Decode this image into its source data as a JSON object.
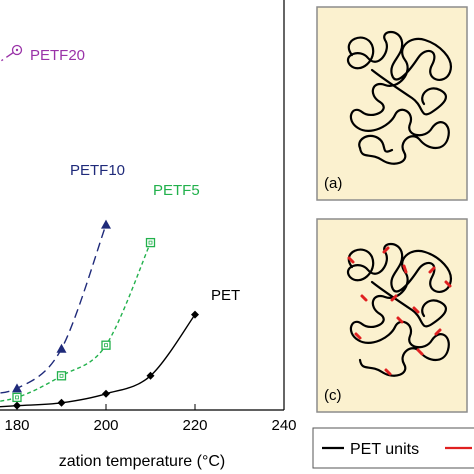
{
  "chart_data": {
    "type": "line",
    "xlabel": "zation temperature (°C)",
    "xlim": [
      160,
      240
    ],
    "x_ticks": [
      "180",
      "200",
      "220",
      "240"
    ],
    "ylim": [
      0,
      1
    ],
    "grid": false,
    "series": [
      {
        "name": "PET",
        "color": "#000000",
        "dash": "solid",
        "marker": "filled-diamond",
        "x": [
          170,
          180,
          190,
          200,
          210,
          220
        ],
        "y": [
          0.005,
          0.012,
          0.02,
          0.045,
          0.095,
          0.265
        ]
      },
      {
        "name": "PETF5",
        "color": "#22b14c",
        "dash": "short-dash",
        "marker": "open-square",
        "x": [
          170,
          180,
          190,
          200,
          210
        ],
        "y": [
          0.015,
          0.035,
          0.095,
          0.18,
          0.465
        ]
      },
      {
        "name": "PETF10",
        "color": "#1f2a7a",
        "dash": "long-dash",
        "marker": "filled-triangle",
        "x": [
          170,
          180,
          190,
          200
        ],
        "y": [
          0.045,
          0.06,
          0.17,
          0.515
        ]
      },
      {
        "name": "PETF20",
        "color": "#9a33a8",
        "dash": "dash-dot",
        "marker": "open-circle-dot",
        "x": [
          160,
          180
        ],
        "y": [
          0.83,
          1.0
        ]
      }
    ]
  },
  "panels": [
    {
      "letter": "(a)"
    },
    {
      "letter": "(c)"
    }
  ],
  "legend": {
    "items": [
      {
        "label": "PET units",
        "color": "#000000"
      },
      {
        "label": "",
        "color": "#e02020"
      }
    ]
  },
  "colors": {
    "panel_fill": "#fbf1cf",
    "panel_border": "#8c8c8c"
  }
}
